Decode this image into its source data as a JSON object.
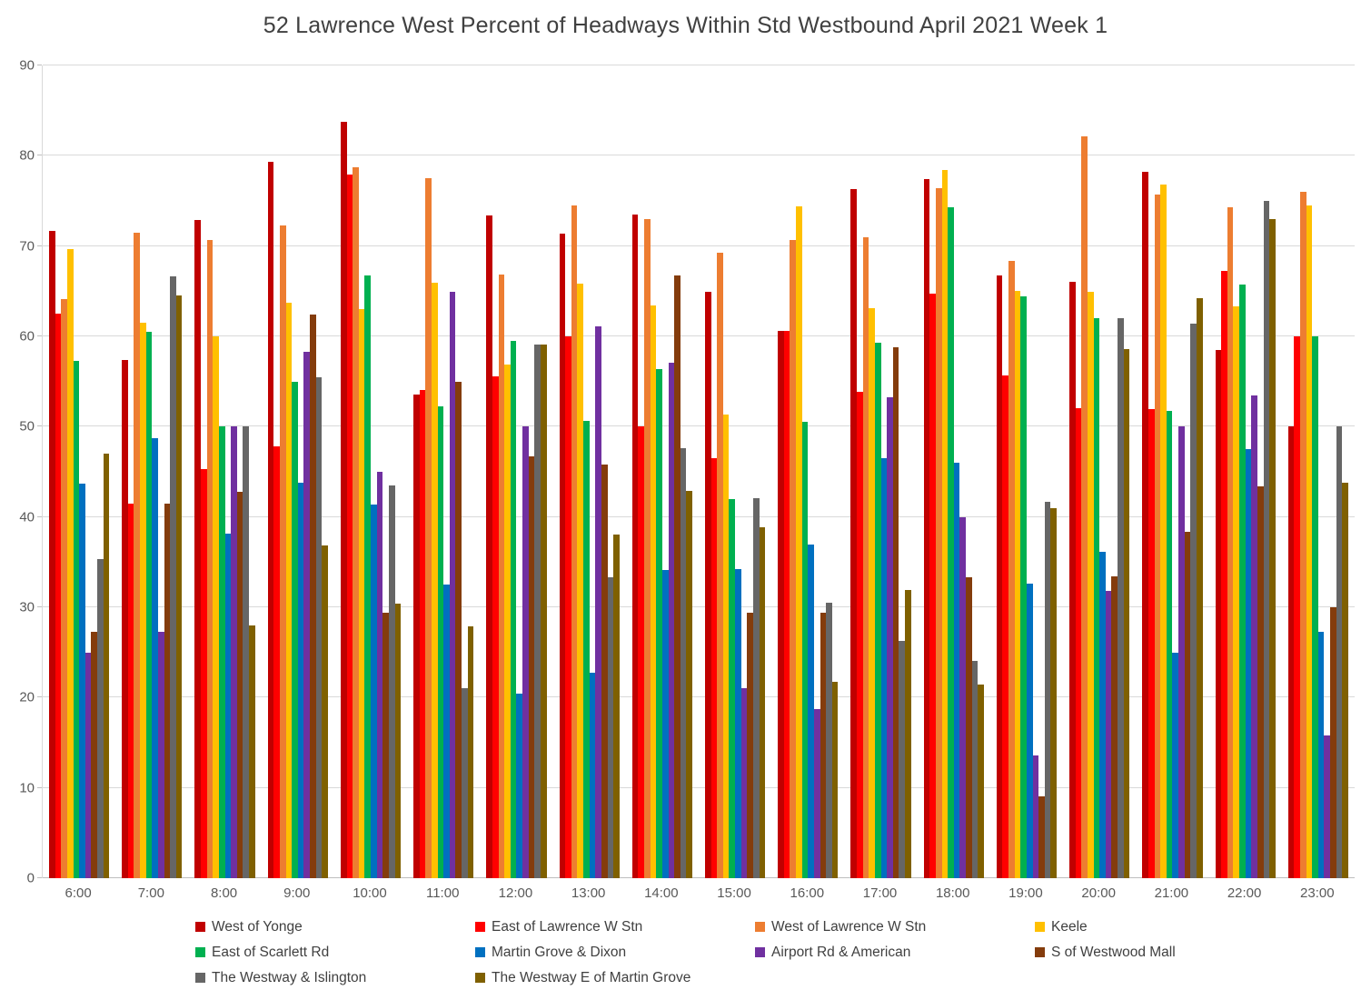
{
  "chart_data": {
    "type": "bar",
    "title": "52 Lawrence West  Percent of Headways Within Std Westbound April 2021 Week 1",
    "xlabel": "",
    "ylabel": "",
    "ylim": [
      0,
      90
    ],
    "ytick_step": 10,
    "grid": true,
    "legend_position": "bottom",
    "categories": [
      "6:00",
      "7:00",
      "8:00",
      "9:00",
      "10:00",
      "11:00",
      "12:00",
      "13:00",
      "14:00",
      "15:00",
      "16:00",
      "17:00",
      "18:00",
      "19:00",
      "20:00",
      "21:00",
      "22:00",
      "23:00"
    ],
    "series": [
      {
        "name": "West of Yonge",
        "color": "#C00000",
        "values": [
          71.7,
          57.4,
          72.9,
          79.3,
          83.8,
          53.6,
          73.4,
          71.4,
          73.5,
          64.9,
          60.6,
          76.3,
          77.4,
          66.7,
          66.0,
          78.2,
          58.5,
          50.0
        ]
      },
      {
        "name": "East of Lawrence W Stn",
        "color": "#FF0000",
        "values": [
          62.5,
          41.5,
          45.3,
          47.8,
          77.9,
          54.1,
          55.6,
          60.0,
          50.0,
          46.5,
          60.6,
          53.9,
          64.7,
          55.7,
          52.0,
          51.9,
          67.2,
          60.0
        ]
      },
      {
        "name": "West of Lawrence W Stn",
        "color": "#ED7D31",
        "values": [
          64.1,
          71.5,
          70.7,
          72.3,
          78.7,
          77.5,
          66.8,
          74.5,
          73.0,
          69.3,
          70.7,
          71.0,
          76.4,
          68.4,
          82.1,
          75.7,
          74.3,
          76.0
        ]
      },
      {
        "name": "Keele",
        "color": "#FFC000",
        "values": [
          69.7,
          61.5,
          60.0,
          63.7,
          63.0,
          65.9,
          56.9,
          65.8,
          63.4,
          51.3,
          74.4,
          63.1,
          78.4,
          65.0,
          64.9,
          76.8,
          63.3,
          74.5
        ]
      },
      {
        "name": "East of Scarlett Rd",
        "color": "#00B050",
        "values": [
          57.3,
          60.5,
          50.0,
          55.0,
          66.7,
          52.3,
          59.5,
          50.6,
          56.4,
          42.0,
          50.5,
          59.3,
          74.3,
          64.4,
          62.0,
          51.7,
          65.7,
          60.0
        ]
      },
      {
        "name": "Martin Grove & Dixon",
        "color": "#0070C0",
        "values": [
          43.7,
          48.7,
          38.2,
          43.8,
          41.4,
          32.5,
          20.4,
          22.8,
          34.1,
          34.2,
          36.9,
          46.5,
          46.0,
          32.6,
          36.1,
          25.0,
          47.5,
          27.3
        ]
      },
      {
        "name": "Airport Rd & American",
        "color": "#7030A0",
        "values": [
          25.0,
          27.3,
          50.0,
          58.3,
          45.0,
          64.9,
          50.0,
          61.1,
          57.1,
          21.0,
          18.7,
          53.3,
          40.0,
          13.6,
          31.8,
          50.0,
          53.5,
          15.8
        ]
      },
      {
        "name": "S of Westwood Mall",
        "color": "#843C0C",
        "values": [
          27.3,
          41.5,
          42.8,
          62.4,
          29.4,
          55.0,
          46.7,
          45.8,
          66.7,
          29.4,
          29.4,
          58.8,
          33.3,
          9.1,
          33.4,
          38.4,
          43.4,
          30.0
        ]
      },
      {
        "name": "The Westway & Islington",
        "color": "#666666",
        "values": [
          35.3,
          66.6,
          50.0,
          55.5,
          43.5,
          21.0,
          59.1,
          33.3,
          47.6,
          42.1,
          30.5,
          26.3,
          24.1,
          41.7,
          62.0,
          61.4,
          75.0,
          50.0
        ]
      },
      {
        "name": "The Westway E of Martin Grove",
        "color": "#7F6000",
        "values": [
          47.0,
          64.5,
          28.0,
          36.8,
          30.4,
          27.9,
          59.1,
          38.1,
          42.9,
          38.9,
          21.7,
          31.9,
          21.4,
          41.0,
          58.6,
          64.2,
          73.0,
          43.8
        ]
      }
    ]
  }
}
